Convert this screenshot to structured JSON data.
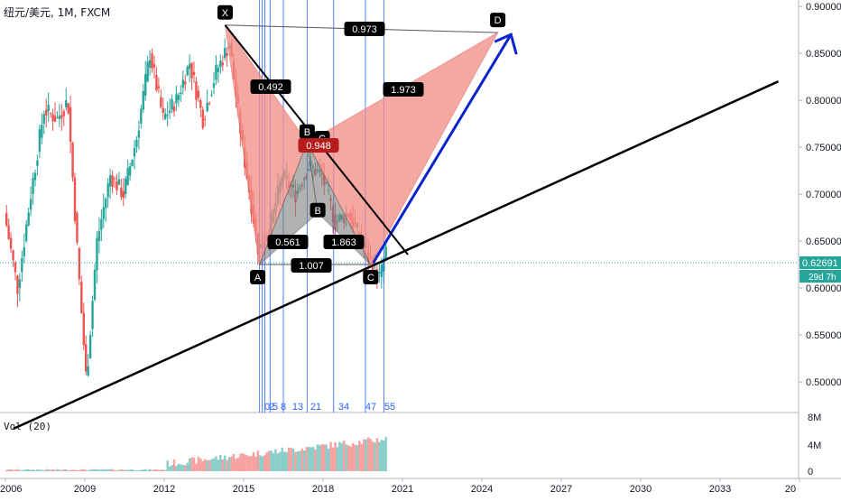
{
  "header": {
    "symbol_title": "纽元/美元, 1M, FXCM"
  },
  "volume_panel": {
    "title": "Vol (20)",
    "ticks": [
      "8M",
      "4M",
      "0"
    ]
  },
  "price_scale": {
    "ticks": [
      "0.90000",
      "0.85000",
      "0.80000",
      "0.75000",
      "0.70000",
      "0.65000",
      "0.60000",
      "0.55000",
      "0.50000"
    ],
    "current_price": "0.62691",
    "countdown": "29d 7h"
  },
  "time_axis": {
    "labels": [
      "2006",
      "2009",
      "2012",
      "2015",
      "2018",
      "2021",
      "2024",
      "2027",
      "2030",
      "2033",
      "20"
    ]
  },
  "pattern": {
    "points": [
      {
        "label": "X",
        "date": 2014.3,
        "price": 0.88
      },
      {
        "label": "A",
        "date": 2015.6,
        "price": 0.625
      },
      {
        "label": "B",
        "date": 2017.4,
        "price": 0.755
      },
      {
        "label": "C",
        "date": 2019.8,
        "price": 0.625
      },
      {
        "label": "D",
        "date": 2024.6,
        "price": 0.872
      }
    ],
    "inner_points": [
      {
        "label": "B",
        "date": 2017.8,
        "price": 0.68
      },
      {
        "label": "C",
        "date": 2017.6,
        "price": 0.75
      }
    ],
    "ratios": {
      "xb": "0.492",
      "ac": "0.948",
      "bd": "1.973",
      "xd": "0.973",
      "inner_ab": "0.561",
      "inner_bc": "1.863",
      "ac_base": "1.007"
    }
  },
  "fib_time_labels": [
    "0",
    "2",
    "5",
    "8",
    "13",
    "21",
    "34",
    "47",
    "55"
  ],
  "colors": {
    "up": "#26a69a",
    "down": "#ef5350",
    "pattern_fill": "#f28b82",
    "pattern_stroke": "#e57373",
    "blue": "#0b24cc",
    "fib": "#2962ff",
    "price_line": "#26a69a"
  },
  "chart_data": {
    "type": "candlestick",
    "title": "纽元/美元, 1M, FXCM",
    "ylim": [
      0.48,
      0.91
    ],
    "x_range": [
      2005.9,
      2035.2
    ],
    "price_series": [
      [
        2006.0,
        0.68
      ],
      [
        2006.5,
        0.6
      ],
      [
        2007.0,
        0.7
      ],
      [
        2007.5,
        0.79
      ],
      [
        2008.0,
        0.78
      ],
      [
        2008.4,
        0.8
      ],
      [
        2008.8,
        0.62
      ],
      [
        2009.1,
        0.5
      ],
      [
        2009.5,
        0.65
      ],
      [
        2010.0,
        0.72
      ],
      [
        2010.5,
        0.7
      ],
      [
        2011.0,
        0.76
      ],
      [
        2011.5,
        0.85
      ],
      [
        2012.0,
        0.78
      ],
      [
        2012.5,
        0.8
      ],
      [
        2013.0,
        0.84
      ],
      [
        2013.5,
        0.78
      ],
      [
        2014.0,
        0.83
      ],
      [
        2014.5,
        0.86
      ],
      [
        2015.0,
        0.75
      ],
      [
        2015.6,
        0.64
      ],
      [
        2016.0,
        0.66
      ],
      [
        2016.5,
        0.72
      ],
      [
        2017.0,
        0.7
      ],
      [
        2017.5,
        0.73
      ],
      [
        2018.0,
        0.72
      ],
      [
        2018.5,
        0.67
      ],
      [
        2019.0,
        0.68
      ],
      [
        2019.8,
        0.63
      ],
      [
        2020.2,
        0.61
      ],
      [
        2020.4,
        0.64
      ]
    ],
    "last_price": 0.62691,
    "trendline": {
      "from": [
        2006.3,
        0.45
      ],
      "to": [
        2035.2,
        0.82
      ]
    },
    "projection_arrow": {
      "from": [
        2019.9,
        0.627
      ],
      "to": [
        2025.1,
        0.87
      ]
    },
    "fib_time_zone_dates": [
      2015.6,
      2015.7,
      2015.8,
      2016.0,
      2016.5,
      2017.4,
      2018.4,
      2019.6,
      2020.3
    ],
    "volume_axis_max": 8
  }
}
